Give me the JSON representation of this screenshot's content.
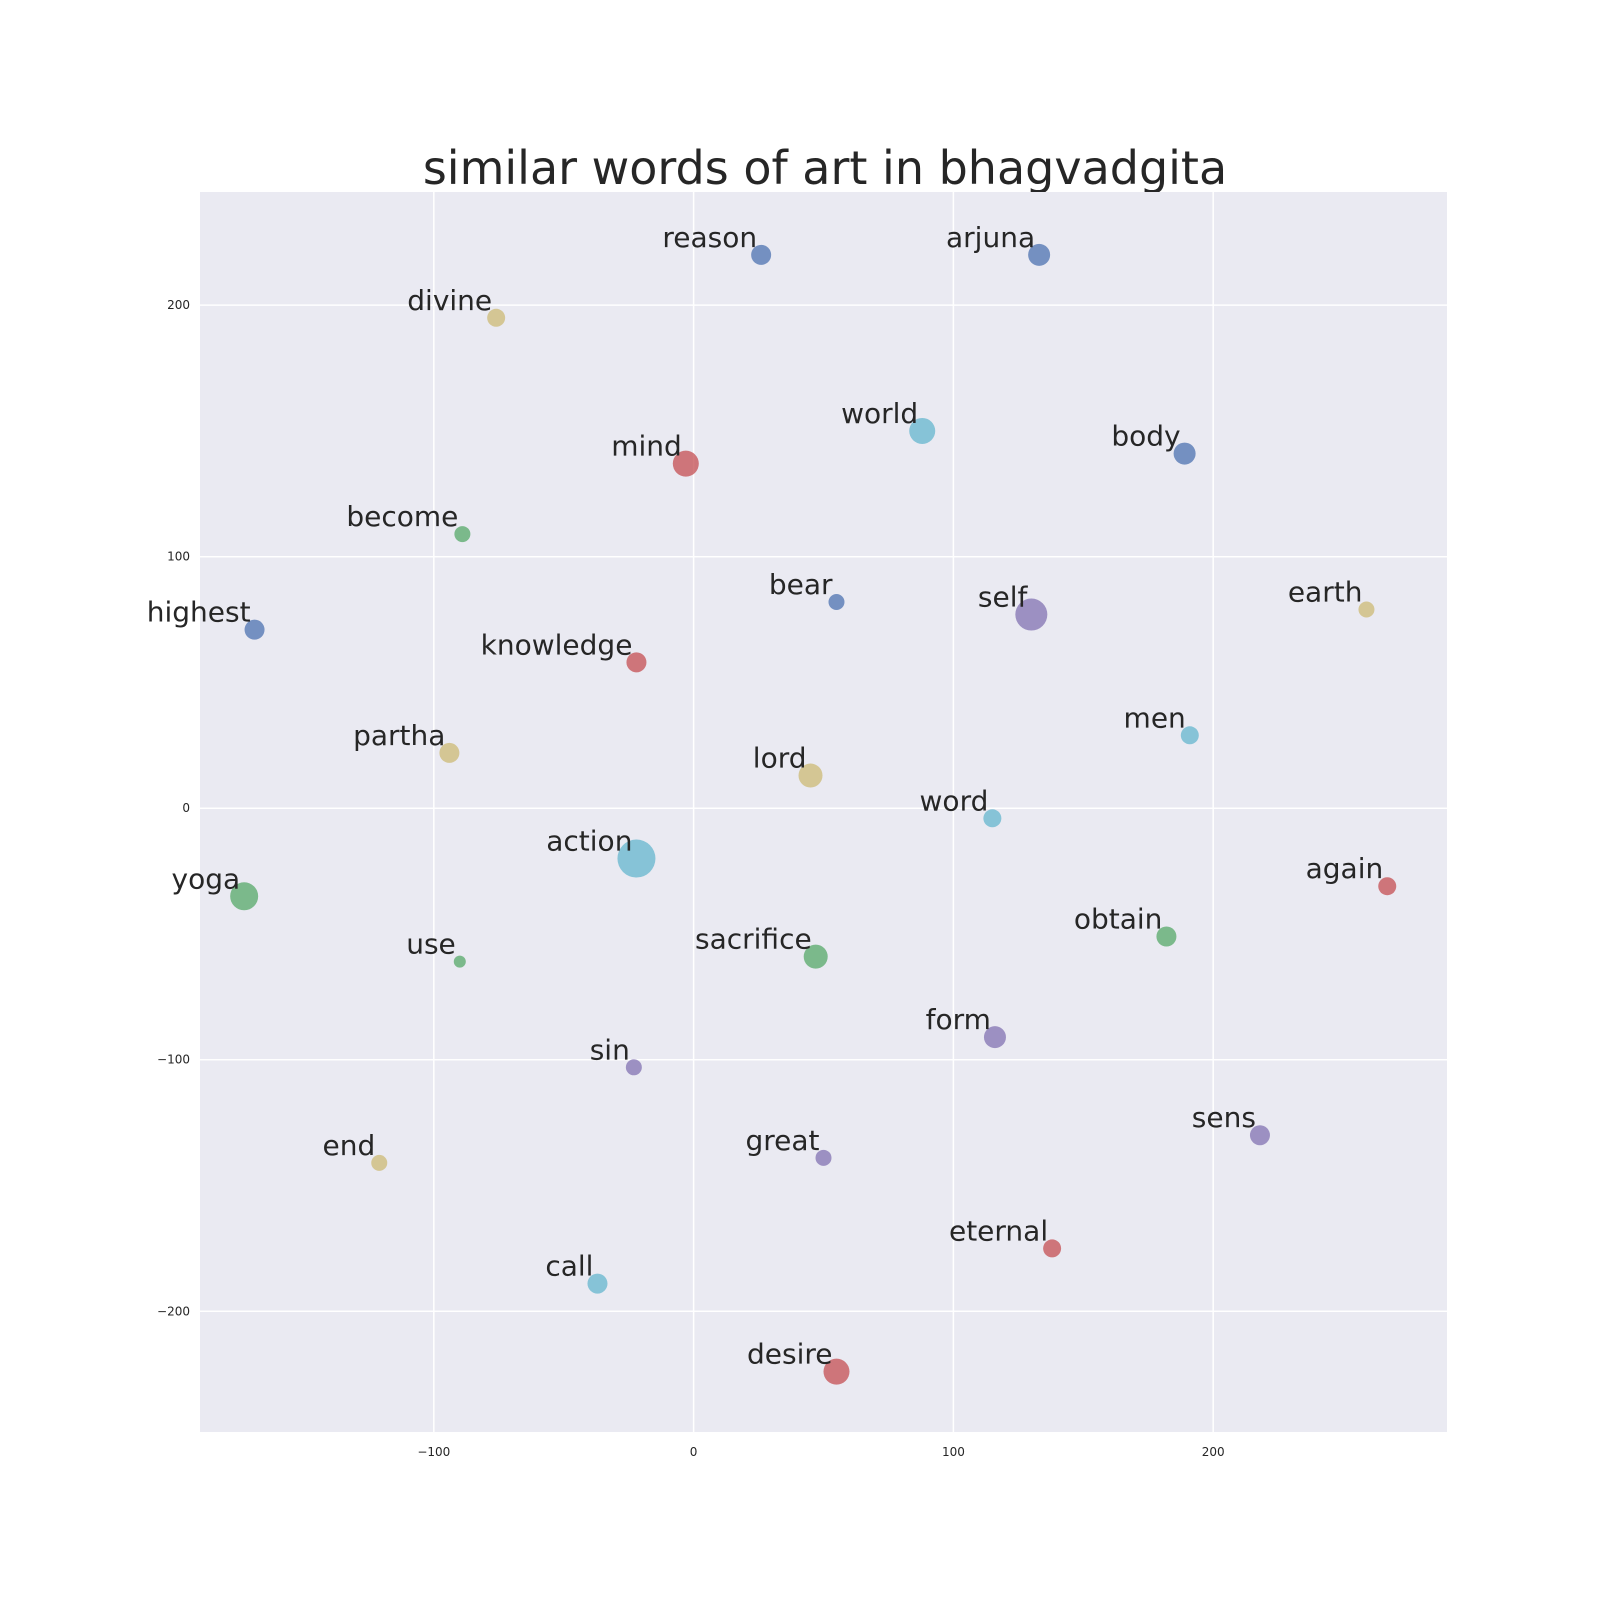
{
  "chart_data": {
    "type": "scatter",
    "title": "similar words of art in bhagvadgita",
    "xlabel": "",
    "ylabel": "",
    "xlim": [
      -190,
      290
    ],
    "ylim": [
      -248,
      245
    ],
    "xticks": [
      -100,
      0,
      100,
      200
    ],
    "yticks": [
      -200,
      -100,
      0,
      100,
      200
    ],
    "x_tick_labels": [
      "−100",
      "0",
      "100",
      "200"
    ],
    "y_tick_labels": [
      "−200",
      "−100",
      "0",
      "100",
      "200"
    ],
    "grid": true,
    "background": "#eaeaf2",
    "points": [
      {
        "word": "reason",
        "x": 26,
        "y": 220,
        "size": 10,
        "color": "#4c72b0"
      },
      {
        "word": "arjuna",
        "x": 133,
        "y": 220,
        "size": 11,
        "color": "#4c72b0"
      },
      {
        "word": "divine",
        "x": -76,
        "y": 195,
        "size": 9,
        "color": "#ccb974"
      },
      {
        "word": "world",
        "x": 88,
        "y": 150,
        "size": 13,
        "color": "#64b5cd"
      },
      {
        "word": "body",
        "x": 189,
        "y": 141,
        "size": 11,
        "color": "#4c72b0"
      },
      {
        "word": "mind",
        "x": -3,
        "y": 137,
        "size": 13,
        "color": "#c44e52"
      },
      {
        "word": "become",
        "x": -89,
        "y": 109,
        "size": 8,
        "color": "#55a868"
      },
      {
        "word": "bear",
        "x": 55,
        "y": 82,
        "size": 8,
        "color": "#4c72b0"
      },
      {
        "word": "self",
        "x": 130,
        "y": 77,
        "size": 16,
        "color": "#8172b2"
      },
      {
        "word": "earth",
        "x": 259,
        "y": 79,
        "size": 8,
        "color": "#ccb974"
      },
      {
        "word": "highest",
        "x": -169,
        "y": 71,
        "size": 10,
        "color": "#4c72b0"
      },
      {
        "word": "knowledge",
        "x": -22,
        "y": 58,
        "size": 10,
        "color": "#c44e52"
      },
      {
        "word": "men",
        "x": 191,
        "y": 29,
        "size": 9,
        "color": "#64b5cd"
      },
      {
        "word": "partha",
        "x": -94,
        "y": 22,
        "size": 10,
        "color": "#ccb974"
      },
      {
        "word": "lord",
        "x": 45,
        "y": 13,
        "size": 12,
        "color": "#ccb974"
      },
      {
        "word": "word",
        "x": 115,
        "y": -4,
        "size": 9,
        "color": "#64b5cd"
      },
      {
        "word": "action",
        "x": -22,
        "y": -20,
        "size": 19,
        "color": "#64b5cd"
      },
      {
        "word": "yoga",
        "x": -173,
        "y": -35,
        "size": 14,
        "color": "#55a868"
      },
      {
        "word": "again",
        "x": 267,
        "y": -31,
        "size": 9,
        "color": "#c44e52"
      },
      {
        "word": "obtain",
        "x": 182,
        "y": -51,
        "size": 10,
        "color": "#55a868"
      },
      {
        "word": "use",
        "x": -90,
        "y": -61,
        "size": 6,
        "color": "#55a868"
      },
      {
        "word": "sacrifice",
        "x": 47,
        "y": -59,
        "size": 12,
        "color": "#55a868"
      },
      {
        "word": "form",
        "x": 116,
        "y": -91,
        "size": 11,
        "color": "#8172b2"
      },
      {
        "word": "sin",
        "x": -23,
        "y": -103,
        "size": 8,
        "color": "#8172b2"
      },
      {
        "word": "sens",
        "x": 218,
        "y": -130,
        "size": 10,
        "color": "#8172b2"
      },
      {
        "word": "end",
        "x": -121,
        "y": -141,
        "size": 8,
        "color": "#ccb974"
      },
      {
        "word": "great",
        "x": 50,
        "y": -139,
        "size": 8,
        "color": "#8172b2"
      },
      {
        "word": "eternal",
        "x": 138,
        "y": -175,
        "size": 9,
        "color": "#c44e52"
      },
      {
        "word": "call",
        "x": -37,
        "y": -189,
        "size": 10,
        "color": "#64b5cd"
      },
      {
        "word": "desire",
        "x": 55,
        "y": -224,
        "size": 13,
        "color": "#c44e52"
      }
    ]
  }
}
